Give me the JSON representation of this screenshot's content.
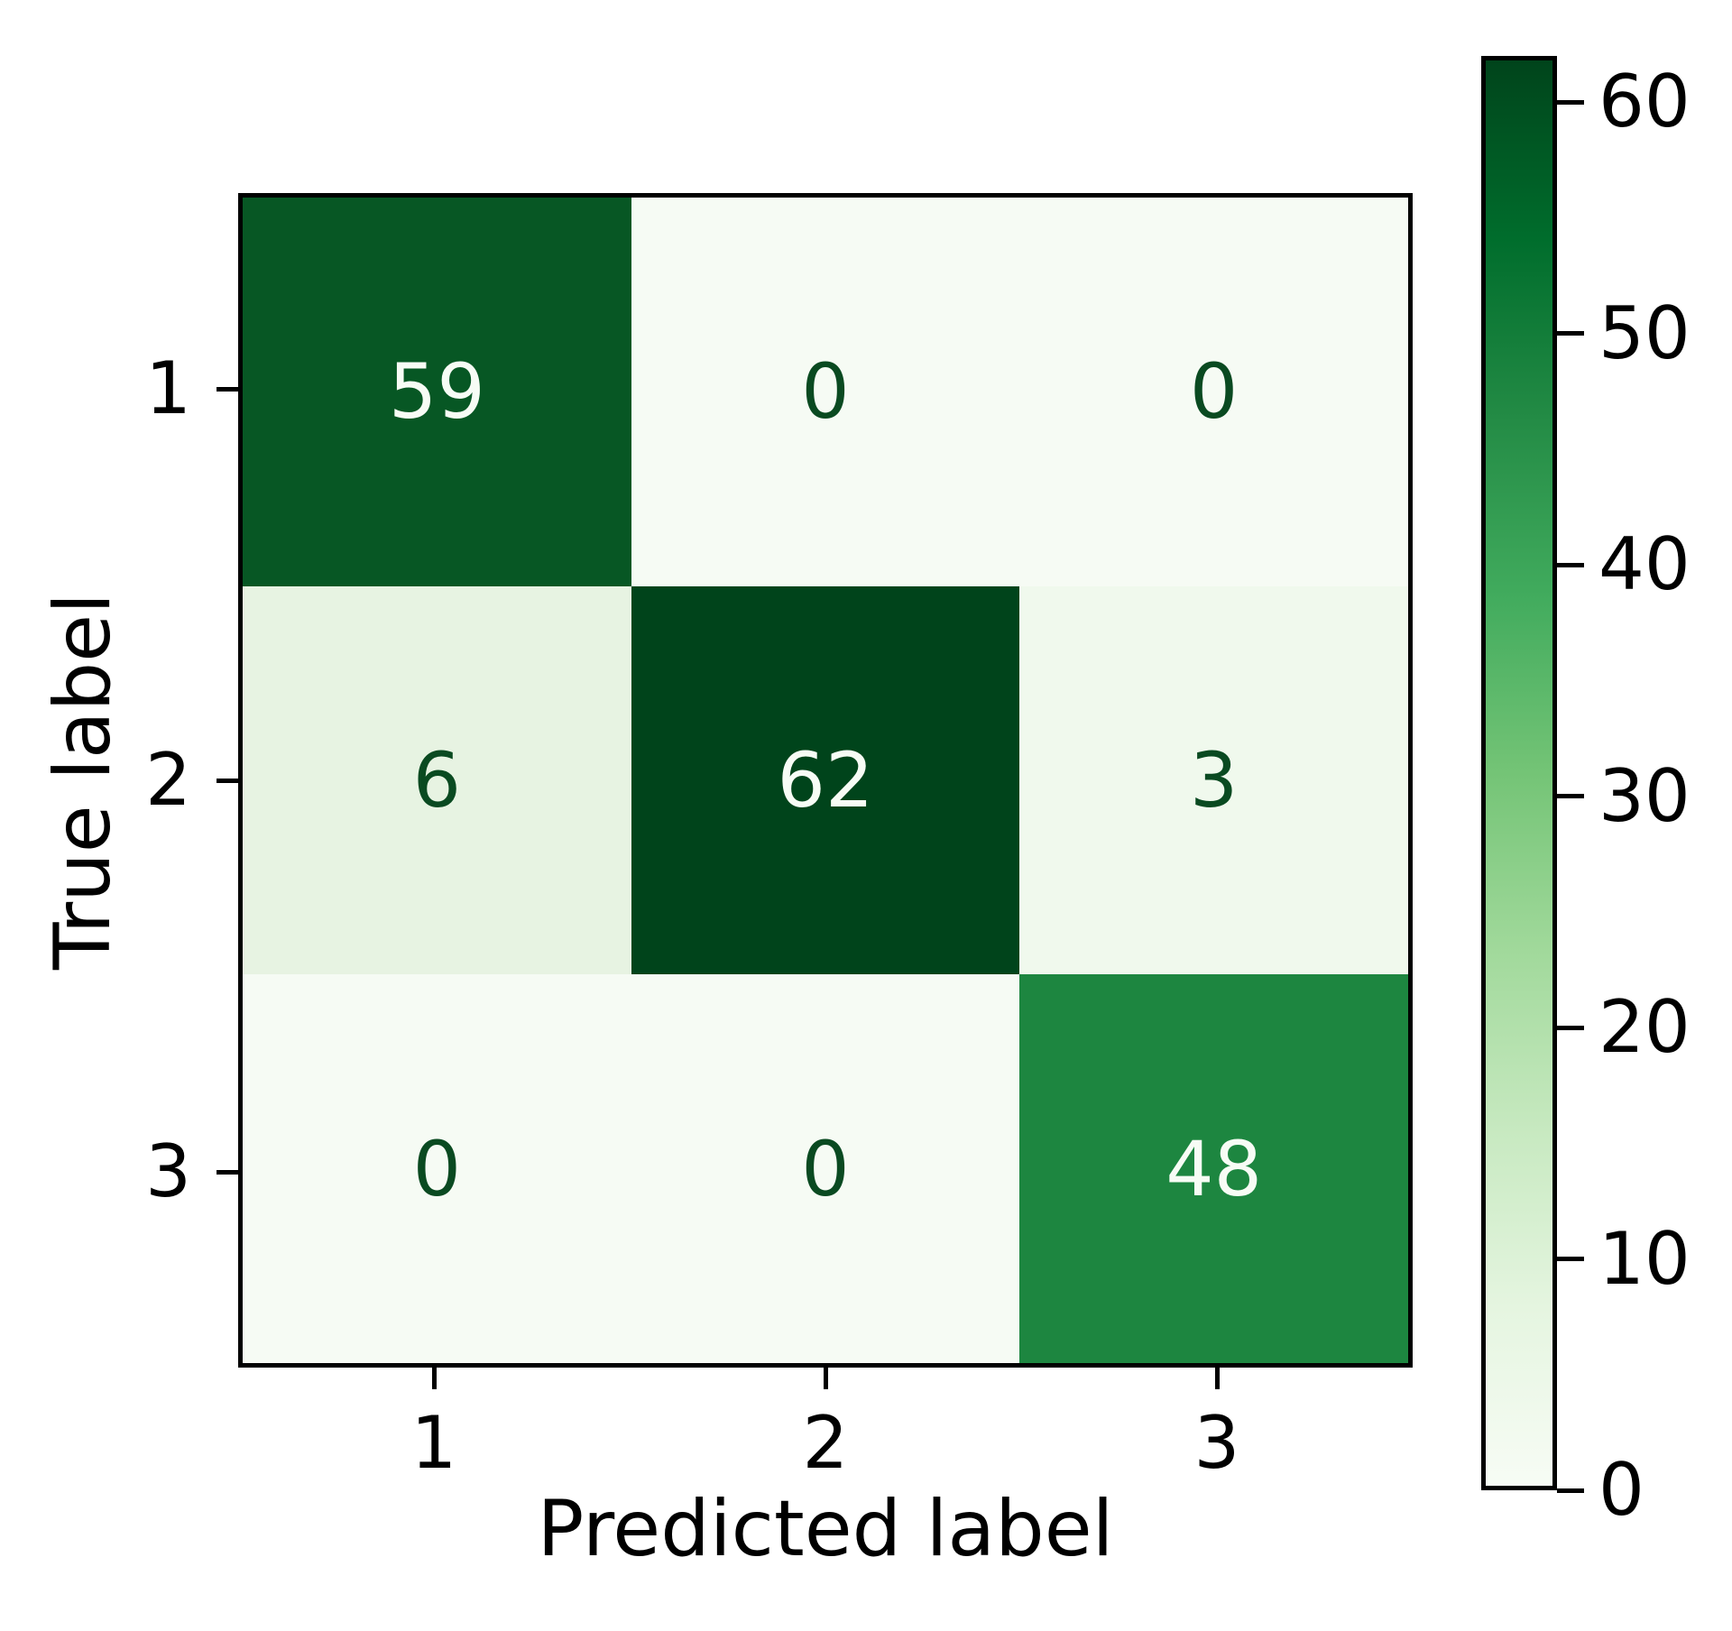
{
  "figure": {
    "background": "#ffffff",
    "axis_color": "#000000"
  },
  "chart_data": {
    "type": "heatmap",
    "title": "",
    "xlabel": "Predicted label",
    "ylabel": "True label",
    "x_tick_labels": [
      "1",
      "2",
      "3"
    ],
    "y_tick_labels": [
      "1",
      "2",
      "3"
    ],
    "matrix": [
      [
        59,
        0,
        0
      ],
      [
        6,
        62,
        3
      ],
      [
        0,
        0,
        48
      ]
    ],
    "vmin": 0,
    "vmax": 62,
    "colormap": "Greens",
    "grid": false,
    "cell_colors": [
      [
        "#075724",
        "#f6fbf4",
        "#f6fbf4"
      ],
      [
        "#e7f3e2",
        "#00441b",
        "#f0f9ed"
      ],
      [
        "#f6fbf4",
        "#f6fbf4",
        "#1d8640"
      ]
    ],
    "cell_text_light": "#f7fcf5",
    "cell_text_dark": "#0a4a21",
    "colorbar": {
      "position": "right",
      "ticks": [
        0,
        10,
        20,
        30,
        40,
        50,
        60
      ],
      "gradient_top_to_bottom": [
        "#00441b",
        "#006d2c",
        "#238b45",
        "#41ab5d",
        "#74c476",
        "#a1d99b",
        "#c7e9c0",
        "#e5f5e0",
        "#f7fcf5"
      ]
    }
  }
}
